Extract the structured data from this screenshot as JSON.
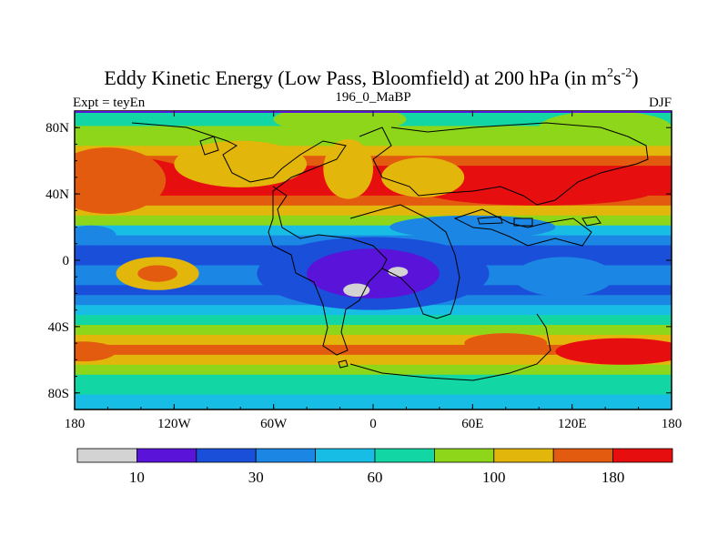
{
  "chart_data": {
    "type": "heatmap",
    "title_main": "Eddy Kinetic Energy (Low Pass, Bloomfield) at 200 hPa (in m",
    "title_sup1": "2",
    "title_mid": "s",
    "title_sup2": "-2",
    "title_end": ")",
    "left_label": "Expt = teyEn",
    "center_label": "196_0_MaBP",
    "right_label": "DJF",
    "x_ticks": [
      "180",
      "120W",
      "60W",
      "0",
      "60E",
      "120E",
      "180"
    ],
    "x_tick_values": [
      -180,
      -120,
      -60,
      0,
      60,
      120,
      180
    ],
    "y_ticks": [
      "80N",
      "40N",
      "0",
      "40S",
      "80S"
    ],
    "y_tick_values": [
      80,
      40,
      0,
      -40,
      -80
    ],
    "xlim": [
      -180,
      180
    ],
    "ylim": [
      -90,
      90
    ],
    "colorbar": {
      "colors": [
        "#d3d3d3",
        "#5a14d9",
        "#1a4fd9",
        "#1b86e3",
        "#18bde6",
        "#12d7a4",
        "#8ed61a",
        "#e3b60c",
        "#e35b0e",
        "#e60e0e"
      ],
      "tick_labels": [
        "10",
        "30",
        "60",
        "100",
        "180"
      ],
      "tick_after_bin": [
        1,
        3,
        5,
        7,
        9
      ]
    },
    "lat_bands": [
      {
        "lat": 90,
        "level": 5
      },
      {
        "lat": 84,
        "level": 5
      },
      {
        "lat": 78,
        "level": 6
      },
      {
        "lat": 72,
        "level": 6
      },
      {
        "lat": 66,
        "level": 7
      },
      {
        "lat": 60,
        "level": 8
      },
      {
        "lat": 54,
        "level": 9
      },
      {
        "lat": 48,
        "level": 9
      },
      {
        "lat": 42,
        "level": 9
      },
      {
        "lat": 36,
        "level": 8
      },
      {
        "lat": 30,
        "level": 7
      },
      {
        "lat": 24,
        "level": 6
      },
      {
        "lat": 18,
        "level": 4
      },
      {
        "lat": 12,
        "level": 3
      },
      {
        "lat": 6,
        "level": 2
      },
      {
        "lat": 0,
        "level": 2
      },
      {
        "lat": -6,
        "level": 3
      },
      {
        "lat": -12,
        "level": 3
      },
      {
        "lat": -18,
        "level": 2
      },
      {
        "lat": -24,
        "level": 3
      },
      {
        "lat": -30,
        "level": 4
      },
      {
        "lat": -36,
        "level": 5
      },
      {
        "lat": -42,
        "level": 6
      },
      {
        "lat": -48,
        "level": 7
      },
      {
        "lat": -54,
        "level": 8
      },
      {
        "lat": -60,
        "level": 7
      },
      {
        "lat": -66,
        "level": 6
      },
      {
        "lat": -72,
        "level": 5
      },
      {
        "lat": -78,
        "level": 5
      },
      {
        "lat": -84,
        "level": 4
      },
      {
        "lat": -90,
        "level": 4
      }
    ],
    "regions": [
      {
        "lon": -150,
        "lat": 50,
        "rx": 40,
        "ry": 12,
        "level": 9
      },
      {
        "lon": -160,
        "lat": 48,
        "rx": 35,
        "ry": 20,
        "level": 8
      },
      {
        "lon": 100,
        "lat": 42,
        "rx": 70,
        "ry": 9,
        "level": 9
      },
      {
        "lon": 30,
        "lat": 50,
        "rx": 25,
        "ry": 12,
        "level": 7
      },
      {
        "lon": -15,
        "lat": 55,
        "rx": 15,
        "ry": 18,
        "level": 7
      },
      {
        "lon": -80,
        "lat": 58,
        "rx": 40,
        "ry": 14,
        "level": 7
      },
      {
        "lon": -20,
        "lat": 85,
        "rx": 40,
        "ry": 8,
        "level": 6
      },
      {
        "lon": 140,
        "lat": 80,
        "rx": 40,
        "ry": 10,
        "level": 6
      },
      {
        "lon": 0,
        "lat": -8,
        "rx": 70,
        "ry": 22,
        "level": 2
      },
      {
        "lon": 0,
        "lat": -8,
        "rx": 40,
        "ry": 15,
        "level": 1
      },
      {
        "lon": -10,
        "lat": -18,
        "rx": 8,
        "ry": 4,
        "level": 0
      },
      {
        "lon": 15,
        "lat": -7,
        "rx": 6,
        "ry": 3,
        "level": 0
      },
      {
        "lon": -130,
        "lat": -8,
        "rx": 25,
        "ry": 10,
        "level": 7
      },
      {
        "lon": -130,
        "lat": -8,
        "rx": 12,
        "ry": 5,
        "level": 8
      },
      {
        "lon": 115,
        "lat": -10,
        "rx": 30,
        "ry": 12,
        "level": 3
      },
      {
        "lon": 150,
        "lat": -55,
        "rx": 40,
        "ry": 8,
        "level": 9
      },
      {
        "lon": -175,
        "lat": -55,
        "rx": 20,
        "ry": 6,
        "level": 8
      },
      {
        "lon": 80,
        "lat": -50,
        "rx": 25,
        "ry": 6,
        "level": 8
      },
      {
        "lon": 60,
        "lat": 20,
        "rx": 50,
        "ry": 7,
        "level": 3
      },
      {
        "lon": -170,
        "lat": 15,
        "rx": 15,
        "ry": 6,
        "level": 3
      }
    ]
  }
}
